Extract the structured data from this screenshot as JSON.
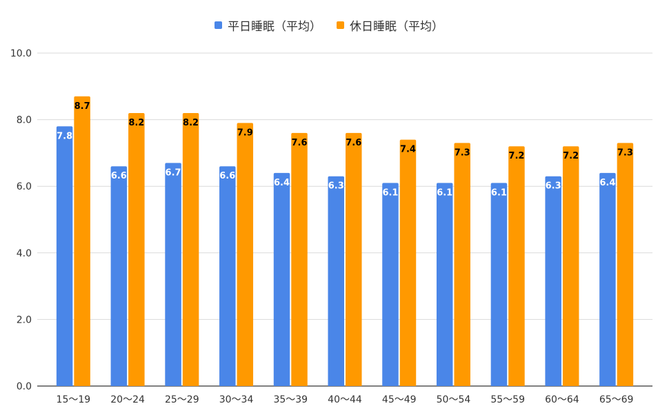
{
  "chart_data": {
    "type": "bar",
    "title": "",
    "xlabel": "",
    "ylabel": "",
    "categories": [
      "15〜19",
      "20〜24",
      "25〜29",
      "30〜34",
      "35〜39",
      "40〜44",
      "45〜49",
      "50〜54",
      "55〜59",
      "60〜64",
      "65〜69"
    ],
    "series": [
      {
        "name": "平日睡眠（平均）",
        "color": "#4a86e8",
        "label_color": "#ffffff",
        "values": [
          7.8,
          6.6,
          6.7,
          6.6,
          6.4,
          6.3,
          6.1,
          6.1,
          6.1,
          6.3,
          6.4
        ],
        "labels": [
          "7.8",
          "6.6",
          "6.7",
          "6.6",
          "6.4",
          "6.3",
          "6.1",
          "6.1",
          "6.1",
          "6.3",
          "6.4"
        ]
      },
      {
        "name": "休日睡眠（平均）",
        "color": "#ff9900",
        "label_color": "#000000",
        "values": [
          8.7,
          8.2,
          8.2,
          7.9,
          7.6,
          7.6,
          7.4,
          7.3,
          7.2,
          7.2,
          7.3
        ],
        "labels": [
          "8.7",
          "8.2",
          "8.2",
          "7.9",
          "7.6",
          "7.6",
          "7.4",
          "7.3",
          "7.2",
          "7.2",
          "7.3"
        ]
      }
    ],
    "ylim": [
      0,
      10
    ],
    "yticks": [
      "0.0",
      "2.0",
      "4.0",
      "6.0",
      "8.0",
      "10.0"
    ],
    "ytick_values": [
      0,
      2,
      4,
      6,
      8,
      10
    ],
    "grid": true,
    "legend_position": "top-center"
  }
}
